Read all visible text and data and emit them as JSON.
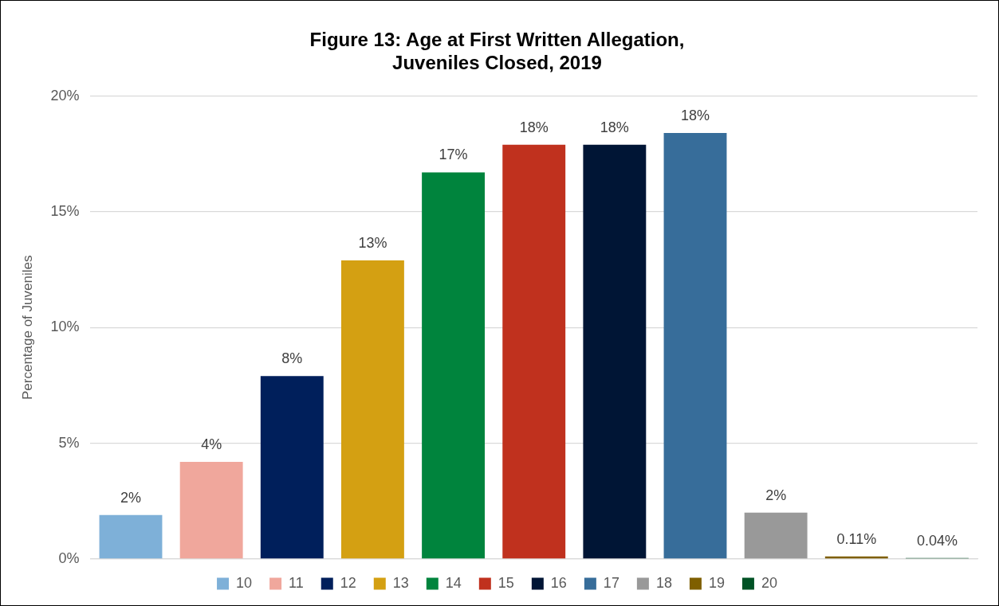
{
  "chart_data": {
    "type": "bar",
    "title": "Figure 13: Age at First Written Allegation,\nJuveniles Closed, 2019",
    "ylabel": "Percentage of Juveniles",
    "categories": [
      null,
      null,
      null,
      null,
      null,
      null,
      null,
      null,
      null,
      null,
      null
    ],
    "series": [
      {
        "name": "10",
        "color": "#7eb0d8",
        "values": [
          1.9,
          null,
          null,
          null,
          null,
          null,
          null,
          null,
          null,
          null,
          null
        ],
        "value_labels": [
          "2%",
          null,
          null,
          null,
          null,
          null,
          null,
          null,
          null,
          null,
          null
        ]
      },
      {
        "name": "11",
        "color": "#f0a79c",
        "values": [
          null,
          4.2,
          null,
          null,
          null,
          null,
          null,
          null,
          null,
          null,
          null
        ],
        "value_labels": [
          null,
          "4%",
          null,
          null,
          null,
          null,
          null,
          null,
          null,
          null,
          null
        ]
      },
      {
        "name": "12",
        "color": "#001f5b",
        "values": [
          null,
          null,
          7.9,
          null,
          null,
          null,
          null,
          null,
          null,
          null,
          null
        ],
        "value_labels": [
          null,
          null,
          "8%",
          null,
          null,
          null,
          null,
          null,
          null,
          null,
          null
        ]
      },
      {
        "name": "13",
        "color": "#d4a012",
        "values": [
          null,
          null,
          null,
          12.9,
          null,
          null,
          null,
          null,
          null,
          null,
          null
        ],
        "value_labels": [
          null,
          null,
          null,
          "13%",
          null,
          null,
          null,
          null,
          null,
          null,
          null
        ]
      },
      {
        "name": "14",
        "color": "#00843d",
        "values": [
          null,
          null,
          null,
          null,
          16.7,
          null,
          null,
          null,
          null,
          null,
          null
        ],
        "value_labels": [
          null,
          null,
          null,
          null,
          "17%",
          null,
          null,
          null,
          null,
          null,
          null
        ]
      },
      {
        "name": "15",
        "color": "#c0311e",
        "values": [
          null,
          null,
          null,
          null,
          null,
          17.9,
          null,
          null,
          null,
          null,
          null
        ],
        "value_labels": [
          null,
          null,
          null,
          null,
          null,
          "18%",
          null,
          null,
          null,
          null,
          null
        ]
      },
      {
        "name": "16",
        "color": "#001535",
        "values": [
          null,
          null,
          null,
          null,
          null,
          null,
          17.9,
          null,
          null,
          null,
          null
        ],
        "value_labels": [
          null,
          null,
          null,
          null,
          null,
          null,
          "18%",
          null,
          null,
          null,
          null
        ]
      },
      {
        "name": "17",
        "color": "#376d9a",
        "values": [
          null,
          null,
          null,
          null,
          null,
          null,
          null,
          18.4,
          null,
          null,
          null
        ],
        "value_labels": [
          null,
          null,
          null,
          null,
          null,
          null,
          null,
          "18%",
          null,
          null,
          null
        ]
      },
      {
        "name": "18",
        "color": "#999999",
        "values": [
          null,
          null,
          null,
          null,
          null,
          null,
          null,
          null,
          2.0,
          null,
          null
        ],
        "value_labels": [
          null,
          null,
          null,
          null,
          null,
          null,
          null,
          null,
          "2%",
          null,
          null
        ]
      },
      {
        "name": "19",
        "color": "#7f5f00",
        "values": [
          null,
          null,
          null,
          null,
          null,
          null,
          null,
          null,
          null,
          0.11,
          null
        ],
        "value_labels": [
          null,
          null,
          null,
          null,
          null,
          null,
          null,
          null,
          null,
          "0.11%",
          null
        ]
      },
      {
        "name": "20",
        "color": "#005225",
        "values": [
          null,
          null,
          null,
          null,
          null,
          null,
          null,
          null,
          null,
          null,
          0.04
        ],
        "value_labels": [
          null,
          null,
          null,
          null,
          null,
          null,
          null,
          null,
          null,
          null,
          "0.04%"
        ]
      }
    ],
    "ylim": [
      0,
      20
    ],
    "yticks": [
      {
        "value": 0,
        "label": "0%"
      },
      {
        "value": 5,
        "label": "5%"
      },
      {
        "value": 10,
        "label": "10%"
      },
      {
        "value": 15,
        "label": "15%"
      },
      {
        "value": 20,
        "label": "20%"
      }
    ],
    "grid": "y",
    "legend": "bottom",
    "tick_labels": "y"
  }
}
